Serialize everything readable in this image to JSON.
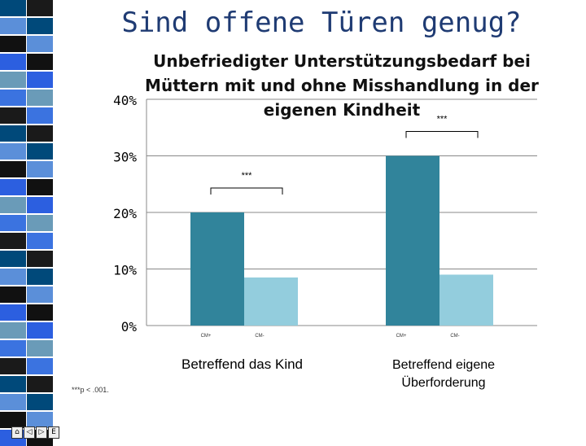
{
  "title": "Sind offene Türen genug?",
  "chart_data": {
    "type": "bar",
    "title": "Unbefriedigter Unterstützungsbedarf bei Müttern mit und ohne Misshandlung in der eigenen Kindheit",
    "ylim": [
      0,
      0.4
    ],
    "yticks": [
      "0%",
      "10%",
      "20%",
      "30%",
      "40%"
    ],
    "categories": [
      "Betreffend das Kind",
      "Betreffend eigene Überforderung"
    ],
    "series": [
      {
        "name": "CM+",
        "values": [
          0.2,
          0.3
        ],
        "color": "#31849b"
      },
      {
        "name": "CM-",
        "values": [
          0.085,
          0.09
        ],
        "color": "#93cddd"
      }
    ],
    "bar_labels": [
      [
        "CM+",
        "CM-"
      ],
      [
        "CM+",
        "CM-"
      ]
    ],
    "significance": [
      "***",
      "***"
    ],
    "grid": true
  },
  "note": "***p < .001.",
  "nav_icons": [
    "home-icon",
    "prev-icon",
    "next-icon",
    "end-icon"
  ],
  "stripe_colors": [
    "#00497a",
    "#1a1a1a",
    "#3b73e0",
    "#6a9bb8",
    "#2c5fe0",
    "#111111",
    "#5b8fd9"
  ]
}
